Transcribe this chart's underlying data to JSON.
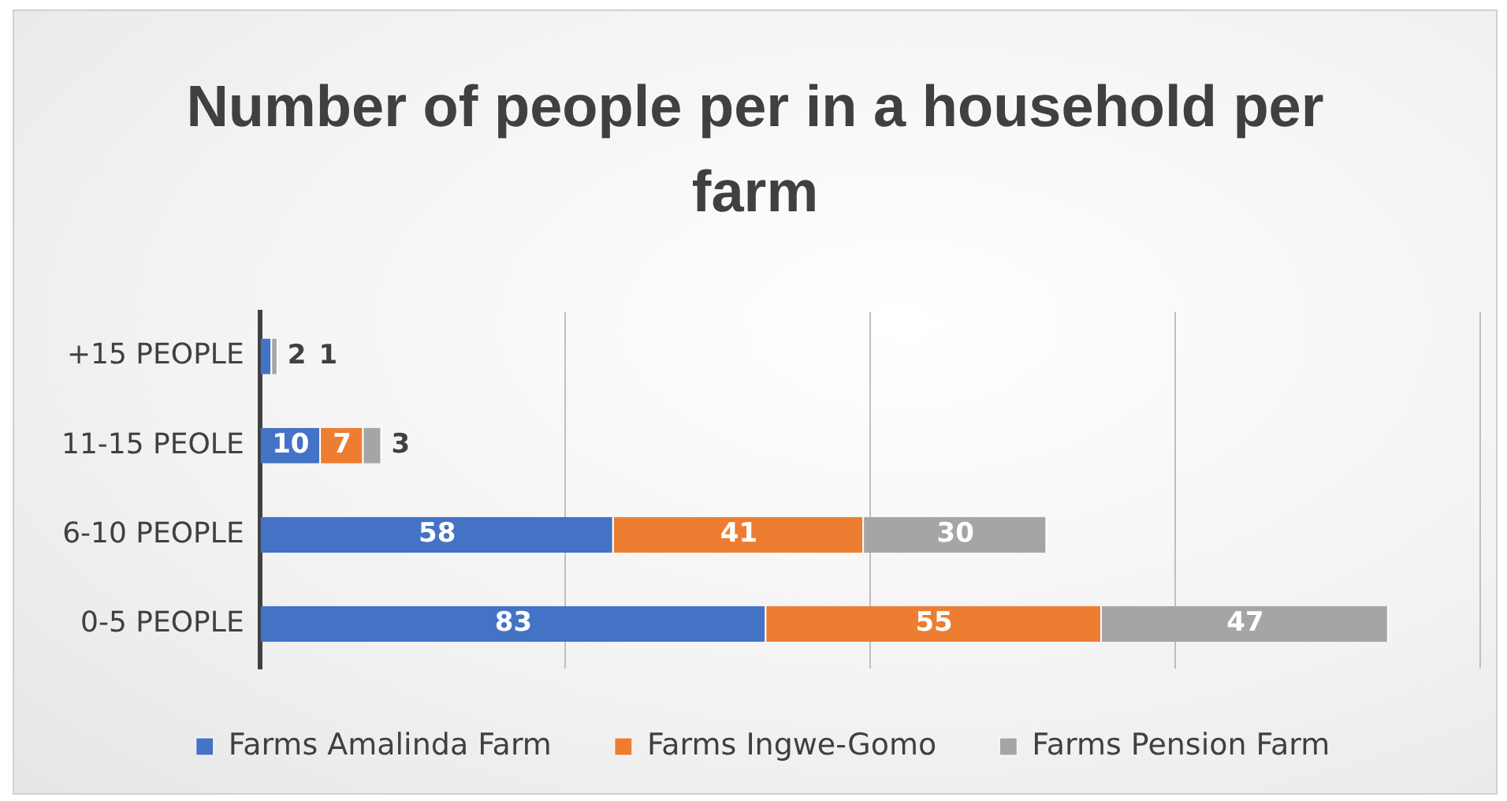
{
  "chart_data": {
    "type": "bar",
    "orientation": "horizontal",
    "stacked": true,
    "title": "Number of people per in a household per farm",
    "categories": [
      "+15 PEOPLE",
      "11-15 PEOLE",
      "6-10 PEOPLE",
      "0-5 PEOPLE"
    ],
    "series": [
      {
        "name": "Farms Amalinda Farm",
        "color": "#4472c4",
        "values": [
          2,
          10,
          58,
          83
        ],
        "value_labels": [
          "2",
          "10",
          "58",
          "83"
        ]
      },
      {
        "name": "Farms Ingwe-Gomo",
        "color": "#ed7d31",
        "values": [
          0,
          7,
          41,
          55
        ],
        "value_labels": [
          null,
          "7",
          "41",
          "55"
        ]
      },
      {
        "name": "Farms Pension Farm",
        "color": "#a5a5a5",
        "values": [
          1,
          3,
          30,
          47
        ],
        "value_labels": [
          "1",
          "3",
          "30",
          "47"
        ]
      }
    ],
    "xlim": [
      0,
      200
    ],
    "xticks": [
      {
        "value": 0,
        "label": null
      },
      {
        "value": 50,
        "label": null
      },
      {
        "value": 100,
        "label": null
      },
      {
        "value": 150,
        "label": null
      },
      {
        "value": 200,
        "label": null
      }
    ],
    "tick_labels": "y",
    "grid": "x",
    "legend": "bottom"
  }
}
